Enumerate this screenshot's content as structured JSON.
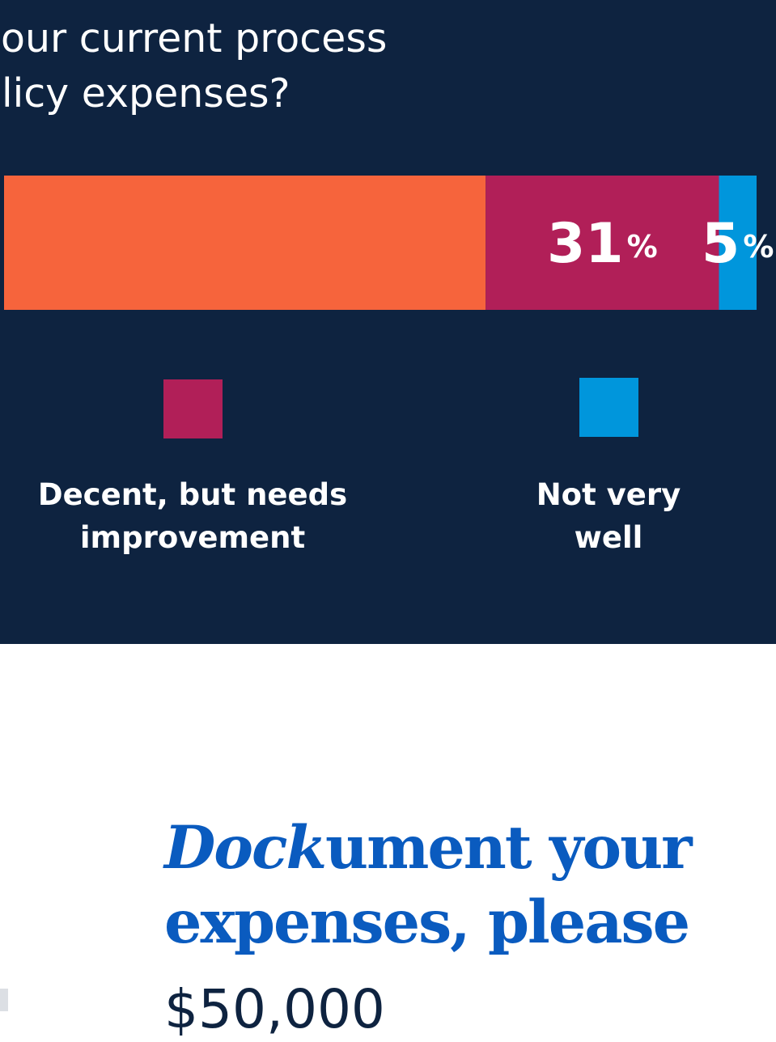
{
  "question": {
    "lines": [
      "your current process",
      "olicy expenses?"
    ]
  },
  "chart_data": {
    "type": "bar",
    "orientation": "horizontal-stacked",
    "unit": "%",
    "segments": [
      {
        "name": "",
        "value": 64,
        "color": "#f6643c",
        "label": ""
      },
      {
        "name": "Decent, but needs improvement",
        "value": 31,
        "color": "#b11f58",
        "label": "31"
      },
      {
        "name": "Not very well",
        "value": 5,
        "color": "#0096dc",
        "label": "5"
      }
    ]
  },
  "legend": [
    {
      "line1": "Decent, but needs",
      "line2": "improvement",
      "color": "#b11f58"
    },
    {
      "line1": "Not very",
      "line2": "well",
      "color": "#0096dc"
    }
  ],
  "headline": {
    "emph": "Dock",
    "line1_rest": "ument your",
    "line2": "expenses, please"
  },
  "amount": "$50,000"
}
